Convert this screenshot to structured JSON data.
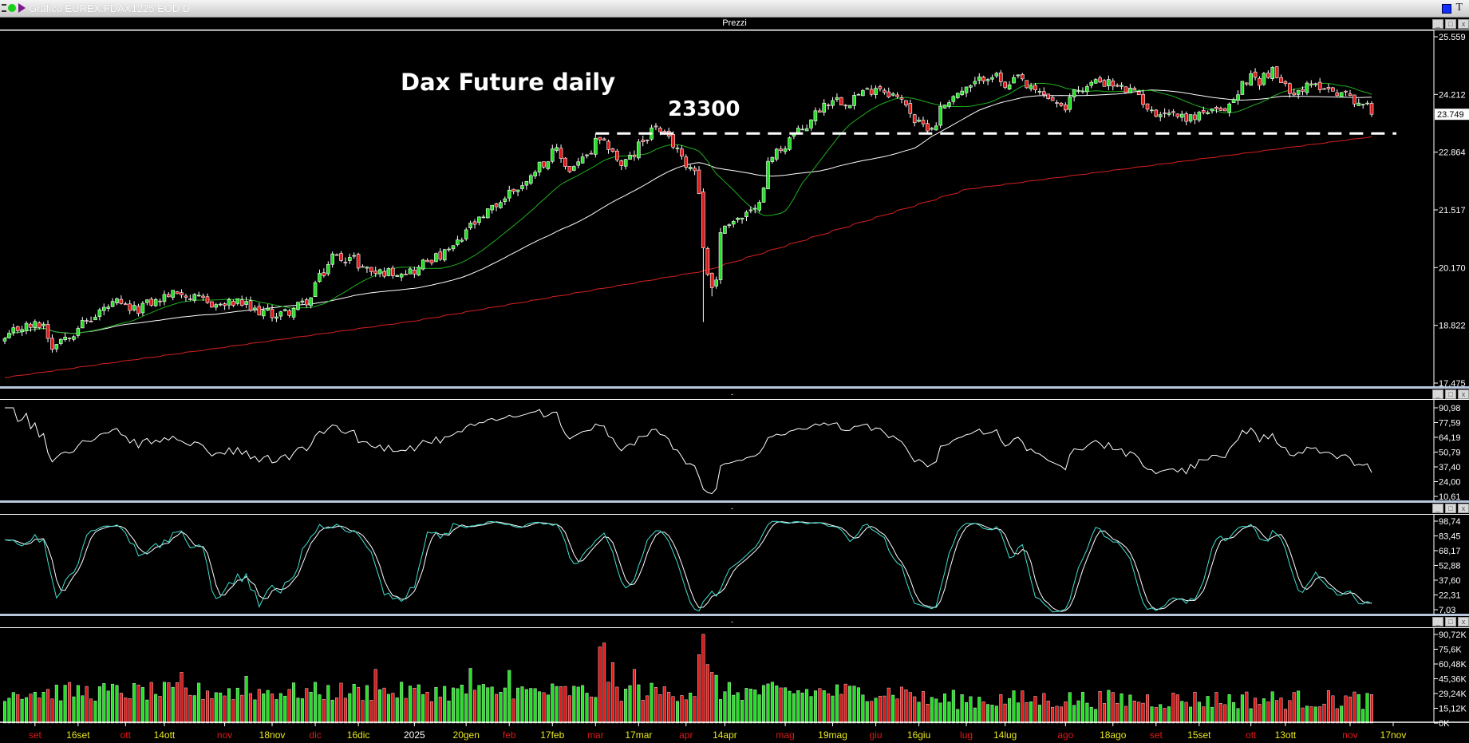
{
  "window": {
    "title": "Grafico EUREX.FDAX1225 EOD D"
  },
  "panels": {
    "price_label": "Prezzi",
    "minimize_symbol": "-",
    "buttons": [
      "_",
      "□",
      "x"
    ]
  },
  "annotations": {
    "title": "Dax Future daily",
    "level_label": "23300"
  },
  "colors": {
    "up": "#22e022",
    "down": "#e01818",
    "ma_short": "#1fae1f",
    "ma_mid": "#ffffff",
    "ma_long": "#d42020",
    "stoch_k": "#40e0d0",
    "stoch_d": "#ffffff",
    "month_label": "#e01818",
    "date_label": "#e8e820",
    "year_label": "#ffffff"
  },
  "chart_data": [
    {
      "type": "candlestick",
      "title": "",
      "series_ohlc_source": "daily closes (approx.)",
      "closes": [
        [
          "2024-08-22",
          18480
        ],
        [
          "2024-08-28",
          18785
        ],
        [
          "2024-09-04",
          18850
        ],
        [
          "2024-09-06",
          18305
        ],
        [
          "2024-09-11",
          18570
        ],
        [
          "2024-09-19",
          18960
        ],
        [
          "2024-09-27",
          19350
        ],
        [
          "2024-10-03",
          19180
        ],
        [
          "2024-10-14",
          19500
        ],
        [
          "2024-10-18",
          19615
        ],
        [
          "2024-10-23",
          19440
        ],
        [
          "2024-10-31",
          19290
        ],
        [
          "2024-11-06",
          19350
        ],
        [
          "2024-11-11",
          19180
        ],
        [
          "2024-11-19",
          19070
        ],
        [
          "2024-11-25",
          19220
        ],
        [
          "2024-11-29",
          19440
        ],
        [
          "2024-12-04",
          20050
        ],
        [
          "2024-12-06",
          20450
        ],
        [
          "2024-12-13",
          20380
        ],
        [
          "2024-12-20",
          20050
        ],
        [
          "2025-01-02",
          20100
        ],
        [
          "2025-01-08",
          20380
        ],
        [
          "2025-01-13",
          20490
        ],
        [
          "2025-01-21",
          21140
        ],
        [
          "2025-01-27",
          21470
        ],
        [
          "2025-01-31",
          21800
        ],
        [
          "2025-02-07",
          22130
        ],
        [
          "2025-02-12",
          22570
        ],
        [
          "2025-02-18",
          22890
        ],
        [
          "2025-02-21",
          22410
        ],
        [
          "2025-02-26",
          22680
        ],
        [
          "2025-03-03",
          23110
        ],
        [
          "2025-03-06",
          23000
        ],
        [
          "2025-03-11",
          22570
        ],
        [
          "2025-03-18",
          23110
        ],
        [
          "2025-03-21",
          23500
        ],
        [
          "2025-03-26",
          23150
        ],
        [
          "2025-03-31",
          22680
        ],
        [
          "2025-04-03",
          22460
        ],
        [
          "2025-04-07",
          20600
        ],
        [
          "2025-04-08",
          20050
        ],
        [
          "2025-04-09",
          19720
        ],
        [
          "2025-04-10",
          19940
        ],
        [
          "2025-04-11",
          20930
        ],
        [
          "2025-04-15",
          21250
        ],
        [
          "2025-04-23",
          21470
        ],
        [
          "2025-04-25",
          22130
        ],
        [
          "2025-04-30",
          22890
        ],
        [
          "2025-05-07",
          23330
        ],
        [
          "2025-05-12",
          23660
        ],
        [
          "2025-05-15",
          23990
        ],
        [
          "2025-05-19",
          24140
        ],
        [
          "2025-05-22",
          24030
        ],
        [
          "2025-05-28",
          24250
        ],
        [
          "2025-06-02",
          24420
        ],
        [
          "2025-06-05",
          24250
        ],
        [
          "2025-06-11",
          24030
        ],
        [
          "2025-06-13",
          23590
        ],
        [
          "2025-06-19",
          23440
        ],
        [
          "2025-06-23",
          23880
        ],
        [
          "2025-06-26",
          24200
        ],
        [
          "2025-07-01",
          24310
        ],
        [
          "2025-07-04",
          24530
        ],
        [
          "2025-07-09",
          24685
        ],
        [
          "2025-07-14",
          24310
        ],
        [
          "2025-07-17",
          24600
        ],
        [
          "2025-07-22",
          24310
        ],
        [
          "2025-07-24",
          24250
        ],
        [
          "2025-07-29",
          24095
        ],
        [
          "2025-08-01",
          23770
        ],
        [
          "2025-08-05",
          24310
        ],
        [
          "2025-08-08",
          24380
        ],
        [
          "2025-08-13",
          24530
        ],
        [
          "2025-08-18",
          24420
        ],
        [
          "2025-08-21",
          24310
        ],
        [
          "2025-08-26",
          24200
        ],
        [
          "2025-08-29",
          23770
        ],
        [
          "2025-09-03",
          23810
        ],
        [
          "2025-09-08",
          23725
        ],
        [
          "2025-09-11",
          23660
        ],
        [
          "2025-09-16",
          23810
        ],
        [
          "2025-09-22",
          23770
        ],
        [
          "2025-09-26",
          24200
        ],
        [
          "2025-10-01",
          24640
        ],
        [
          "2025-10-03",
          24530
        ],
        [
          "2025-10-08",
          24750
        ],
        [
          "2025-10-10",
          24470
        ],
        [
          "2025-10-15",
          24310
        ],
        [
          "2025-10-20",
          24380
        ],
        [
          "2025-10-23",
          24420
        ],
        [
          "2025-10-28",
          24310
        ],
        [
          "2025-11-04",
          24095
        ],
        [
          "2025-11-06",
          23990
        ],
        [
          "2025-11-10",
          23749
        ]
      ],
      "notable_lows": [
        [
          "2025-04-07",
          18900
        ],
        [
          "2025-04-09",
          19500
        ]
      ],
      "moving_averages": {
        "short_period": 20,
        "mid_period": 50,
        "long_ma_values": [
          [
            "2024-08-22",
            17600
          ],
          [
            "2025-01-02",
            18920
          ],
          [
            "2025-04-07",
            20100
          ],
          [
            "2025-07-01",
            22000
          ],
          [
            "2025-11-10",
            23230
          ]
        ]
      },
      "horizontal_line": {
        "value": 23300,
        "from": "2025-03-03",
        "style": "dashed"
      },
      "last_price": "23.749",
      "y_ticks": [
        "25.559",
        "24.212",
        "22.864",
        "21.517",
        "20.170",
        "18.822",
        "17.475"
      ],
      "ylim": [
        17475,
        25559
      ]
    },
    {
      "type": "line",
      "indicator": "RSI",
      "period": 14,
      "y_ticks": [
        "90,98",
        "77,59",
        "64,19",
        "50,79",
        "37,40",
        "24,00",
        "10,61"
      ],
      "ylim": [
        10.61,
        90.98
      ]
    },
    {
      "type": "line",
      "indicator": "Stochastic",
      "k_period": 14,
      "d_period": 3,
      "y_ticks": [
        "98,74",
        "83,45",
        "68,17",
        "52,88",
        "37,60",
        "22,31",
        "7,03"
      ],
      "ylim": [
        7.03,
        98.74
      ]
    },
    {
      "type": "bar",
      "indicator": "Volume",
      "y_ticks": [
        "90,72K",
        "75,6K",
        "60,48K",
        "45,36K",
        "29,24K",
        "15,12K",
        "0K"
      ],
      "ylim": [
        0,
        90720
      ],
      "last_label": "29,24K",
      "spikes": [
        [
          "2025-03-04",
          78000
        ],
        [
          "2025-03-05",
          82000
        ],
        [
          "2025-03-07",
          62000
        ],
        [
          "2025-03-14",
          55000
        ],
        [
          "2025-04-04",
          70000
        ],
        [
          "2025-04-07",
          91000
        ],
        [
          "2025-04-08",
          60000
        ],
        [
          "2025-04-09",
          52000
        ],
        [
          "2025-04-10",
          49000
        ],
        [
          "2025-04-04",
          70000
        ],
        [
          "2024-10-18",
          52000
        ],
        [
          "2024-11-08",
          48000
        ],
        [
          "2024-12-20",
          55000
        ],
        [
          "2025-02-03",
          54000
        ],
        [
          "2025-01-21",
          56000
        ]
      ]
    },
    {
      "type": "time_axis",
      "labels": [
        [
          "set",
          "2024-09-02",
          "month"
        ],
        [
          "16set",
          "2024-09-16",
          "date"
        ],
        [
          "ott",
          "2024-10-01",
          "month"
        ],
        [
          "14ott",
          "2024-10-14",
          "date"
        ],
        [
          "nov",
          "2024-11-01",
          "month"
        ],
        [
          "18nov",
          "2024-11-18",
          "date"
        ],
        [
          "dic",
          "2024-12-02",
          "month"
        ],
        [
          "16dic",
          "2024-12-16",
          "date"
        ],
        [
          "2025",
          "2025-01-02",
          "year"
        ],
        [
          "20gen",
          "2025-01-20",
          "date"
        ],
        [
          "feb",
          "2025-02-03",
          "month"
        ],
        [
          "17feb",
          "2025-02-17",
          "date"
        ],
        [
          "mar",
          "2025-03-03",
          "month"
        ],
        [
          "17mar",
          "2025-03-17",
          "date"
        ],
        [
          "apr",
          "2025-04-01",
          "month"
        ],
        [
          "14apr",
          "2025-04-14",
          "date"
        ],
        [
          "mag",
          "2025-05-02",
          "month"
        ],
        [
          "19mag",
          "2025-05-19",
          "date"
        ],
        [
          "giu",
          "2025-06-02",
          "month"
        ],
        [
          "16giu",
          "2025-06-16",
          "date"
        ],
        [
          "lug",
          "2025-07-01",
          "month"
        ],
        [
          "14lug",
          "2025-07-14",
          "date"
        ],
        [
          "ago",
          "2025-08-01",
          "month"
        ],
        [
          "18ago",
          "2025-08-18",
          "date"
        ],
        [
          "set",
          "2025-09-01",
          "month"
        ],
        [
          "15set",
          "2025-09-15",
          "date"
        ],
        [
          "ott",
          "2025-10-01",
          "month"
        ],
        [
          "13ott",
          "2025-10-13",
          "date"
        ],
        [
          "nov",
          "2025-11-03",
          "month"
        ],
        [
          "17nov",
          "2025-11-17",
          "date"
        ]
      ]
    }
  ]
}
